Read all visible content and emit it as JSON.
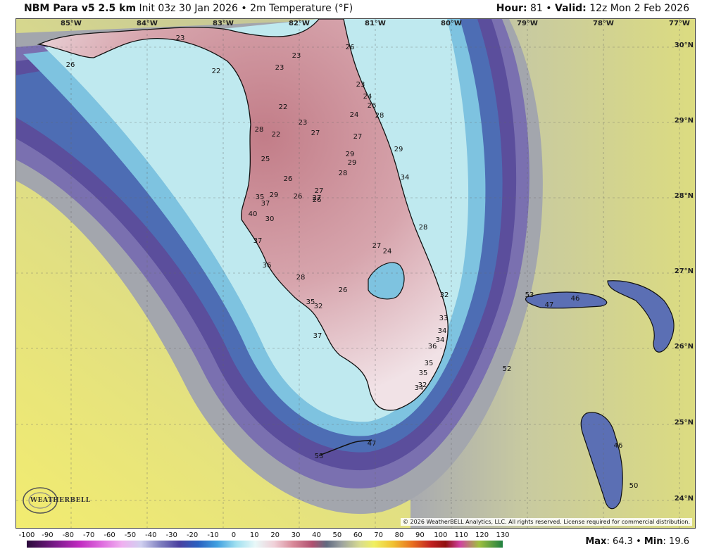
{
  "header": {
    "model": "NBM Para v5 2.5 km",
    "init": "Init 03z 30 Jan 2026",
    "bullet": "•",
    "field": "2m Temperature (°F)",
    "hour_label": "Hour:",
    "hour_value": "81",
    "valid_label": "Valid:",
    "valid_value": "12z Mon 2 Feb 2026"
  },
  "axes": {
    "longitudes": [
      "85°W",
      "84°W",
      "83°W",
      "82°W",
      "81°W",
      "80°W",
      "79°W",
      "78°W",
      "77°W"
    ],
    "latitudes": [
      "30°N",
      "29°N",
      "28°N",
      "27°N",
      "26°N",
      "25°N",
      "24°N"
    ]
  },
  "temperature_labels": [
    "23",
    "26",
    "22",
    "23",
    "23",
    "26",
    "23",
    "24",
    "26",
    "28",
    "22",
    "23",
    "22",
    "27",
    "24",
    "27",
    "28",
    "29",
    "29",
    "28",
    "25",
    "26",
    "29",
    "27",
    "26",
    "27",
    "26",
    "35",
    "37",
    "40",
    "30",
    "28",
    "27",
    "37",
    "36",
    "28",
    "24",
    "26",
    "35",
    "32",
    "32",
    "37",
    "33",
    "34",
    "34",
    "36",
    "35",
    "35",
    "34",
    "32",
    "47",
    "47",
    "46",
    "53",
    "52",
    "46",
    "53",
    "50",
    "29",
    "34"
  ],
  "legend": {
    "ticks": [
      "-100",
      "-90",
      "-80",
      "-70",
      "-60",
      "-50",
      "-40",
      "-30",
      "-20",
      "-10",
      "0",
      "10",
      "20",
      "30",
      "40",
      "50",
      "60",
      "70",
      "80",
      "90",
      "100",
      "110",
      "120",
      "130"
    ],
    "max_label": "Max",
    "max_value": "64.3",
    "min_label": "Min",
    "min_value": "19.6"
  },
  "copyright": "© 2026 WeatherBELL Analytics, LLC. All rights reserved. License required for commercial distribution.",
  "logo_text": "WEATHERBELL",
  "colors": {
    "cold_land": "#c98a92",
    "cool_coast": "#e9f3f4",
    "near_shore": "#a9dfe8",
    "mid_water": "#5a83c0",
    "deep_band": "#5a5aa0",
    "gray_band": "#9ea4a8",
    "warm_gulf": "#e6e36a",
    "ocean_east": "#cfd29a"
  }
}
